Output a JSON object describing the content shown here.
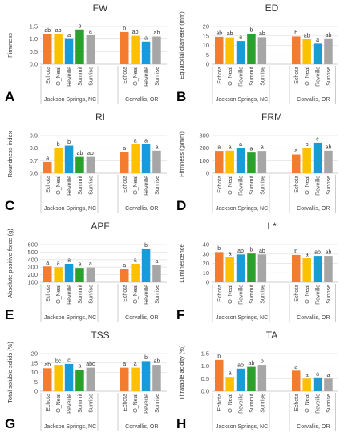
{
  "figure": {
    "groups": [
      "Jackson Springs, NC",
      "Corvallis, OR"
    ],
    "cultivars": [
      "Echota",
      "O_Neal",
      "Reveille",
      "Summit",
      "Sunrise"
    ],
    "colors": {
      "Echota": "#f47c2e",
      "O_Neal": "#ffc000",
      "Reveille": "#1a9ad6",
      "Summit": "#2ca02c",
      "Sunrise": "#a6a6a6"
    }
  },
  "chart_data": [
    {
      "type": "bar",
      "panel_letter": "A",
      "title": "FW",
      "ylabel": "Firmness",
      "ylim": [
        0.0,
        1.5
      ],
      "yticks": [
        "0.0",
        "0.5",
        "1.0",
        "1.5"
      ],
      "series": [
        {
          "group": "Jackson Springs, NC",
          "values": [
            1.2,
            1.2,
            1.0,
            1.38,
            1.15
          ],
          "letters": [
            "ab",
            "ab",
            "a",
            "b",
            "a"
          ]
        },
        {
          "group": "Corvallis, OR",
          "values": [
            1.28,
            1.13,
            0.9,
            null,
            1.1
          ],
          "letters": [
            "b",
            "ab",
            "a",
            "",
            "ab"
          ]
        }
      ]
    },
    {
      "type": "bar",
      "panel_letter": "B",
      "title": "ED",
      "ylabel": "Equatorial diameter (mm)",
      "ylim": [
        0,
        20
      ],
      "yticks": [
        "0",
        "5",
        "10",
        "15",
        "20"
      ],
      "series": [
        {
          "group": "Jackson Springs, NC",
          "values": [
            14.5,
            14.2,
            12.3,
            16.2,
            14.3
          ],
          "letters": [
            "ab",
            "ab",
            "a",
            "b",
            "ab"
          ]
        },
        {
          "group": "Corvallis, OR",
          "values": [
            14.7,
            13.2,
            10.9,
            null,
            13.3
          ],
          "letters": [
            "b",
            "ab",
            "a",
            "",
            "ab"
          ]
        }
      ]
    },
    {
      "type": "bar",
      "panel_letter": "C",
      "title": "RI",
      "ylabel": "Roundness index",
      "ylim": [
        0.6,
        0.9
      ],
      "yticks": [
        "0.6",
        "0.7",
        "0.8",
        "0.9"
      ],
      "series": [
        {
          "group": "Jackson Springs, NC",
          "values": [
            0.69,
            0.8,
            0.82,
            0.73,
            0.73
          ],
          "letters": [
            "a",
            "b",
            "b",
            "ab",
            "ab"
          ]
        },
        {
          "group": "Corvallis, OR",
          "values": [
            0.77,
            0.83,
            0.83,
            null,
            0.78
          ],
          "letters": [
            "a",
            "a",
            "a",
            "",
            "a"
          ]
        }
      ]
    },
    {
      "type": "bar",
      "panel_letter": "D",
      "title": "FRM",
      "ylabel": "Firmness (g/mm)",
      "ylim": [
        0,
        300
      ],
      "yticks": [
        "0",
        "100",
        "200",
        "300"
      ],
      "series": [
        {
          "group": "Jackson Springs, NC",
          "values": [
            178,
            180,
            200,
            165,
            178
          ],
          "letters": [
            "a",
            "a",
            "a",
            "a",
            "a"
          ]
        },
        {
          "group": "Corvallis, OR",
          "values": [
            150,
            200,
            243,
            null,
            180
          ],
          "letters": [
            "a",
            "b",
            "c",
            "",
            "ab"
          ]
        }
      ]
    },
    {
      "type": "bar",
      "panel_letter": "E",
      "title": "APF",
      "ylabel": "Absolute positive force (g)",
      "ylim": [
        100,
        600
      ],
      "yticks": [
        "100",
        "200",
        "300",
        "400",
        "500",
        "600"
      ],
      "series": [
        {
          "group": "Jackson Springs, NC",
          "values": [
            310,
            300,
            345,
            290,
            295
          ],
          "letters": [
            "a",
            "a",
            "a",
            "a",
            "a"
          ]
        },
        {
          "group": "Corvallis, OR",
          "values": [
            275,
            345,
            540,
            null,
            330
          ],
          "letters": [
            "a",
            "a",
            "b",
            "",
            "a"
          ]
        }
      ]
    },
    {
      "type": "bar",
      "panel_letter": "F",
      "title": "L*",
      "ylabel": "Luminescence",
      "ylim": [
        0,
        40
      ],
      "yticks": [
        "0",
        "10",
        "20",
        "30",
        "40"
      ],
      "series": [
        {
          "group": "Jackson Springs, NC",
          "values": [
            32,
            26.5,
            29.5,
            30.5,
            29.5
          ],
          "letters": [
            "b",
            "a",
            "ab",
            "b",
            "ab"
          ]
        },
        {
          "group": "Corvallis, OR",
          "values": [
            29,
            25.5,
            28,
            null,
            28
          ],
          "letters": [
            "b",
            "a",
            "ab",
            "",
            "ab"
          ]
        }
      ]
    },
    {
      "type": "bar",
      "panel_letter": "G",
      "title": "TSS",
      "ylabel": "Total soluble solids (%)",
      "ylim": [
        0,
        20
      ],
      "yticks": [
        "0",
        "5",
        "10",
        "15",
        "20"
      ],
      "series": [
        {
          "group": "Jackson Springs, NC",
          "values": [
            12.2,
            14,
            14.5,
            11.5,
            12.5
          ],
          "letters": [
            "ab",
            "bc",
            "c",
            "a",
            "abc"
          ]
        },
        {
          "group": "Corvallis, OR",
          "values": [
            12.5,
            12.5,
            16,
            null,
            14
          ],
          "letters": [
            "a",
            "a",
            "b",
            "",
            "ab"
          ]
        }
      ]
    },
    {
      "type": "bar",
      "panel_letter": "H",
      "title": "TA",
      "ylabel": "Titratable acidity (%)",
      "ylim": [
        0.0,
        1.5
      ],
      "yticks": [
        "0.0",
        "0.5",
        "1.0",
        "1.5"
      ],
      "series": [
        {
          "group": "Jackson Springs, NC",
          "values": [
            1.25,
            0.57,
            0.9,
            0.97,
            1.05
          ],
          "letters": [
            "b",
            "a",
            "ab",
            "ab",
            "b"
          ]
        },
        {
          "group": "Corvallis, OR",
          "values": [
            0.82,
            0.5,
            0.55,
            null,
            0.5
          ],
          "letters": [
            "a",
            "a",
            "a",
            "",
            "a"
          ]
        }
      ]
    }
  ]
}
